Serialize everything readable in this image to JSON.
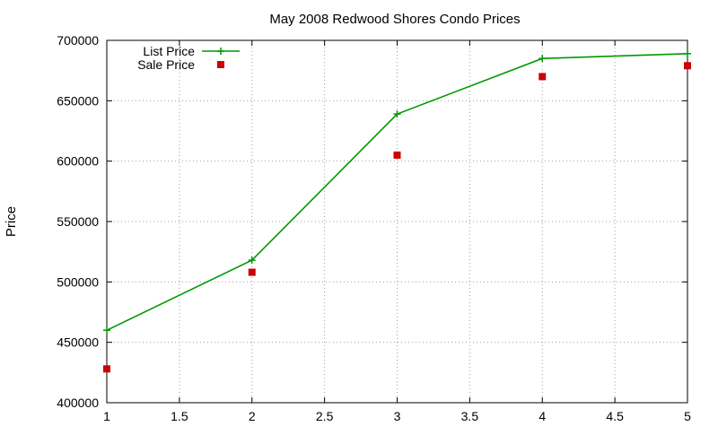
{
  "chart_data": {
    "type": "line",
    "title": "May 2008 Redwood Shores Condo Prices",
    "xlabel": "",
    "ylabel": "Price",
    "xlim": [
      1,
      5
    ],
    "ylim": [
      400000,
      700000
    ],
    "x_ticks": [
      "1",
      "1.5",
      "2",
      "2.5",
      "3",
      "3.5",
      "4",
      "4.5",
      "5"
    ],
    "y_ticks": [
      "400000",
      "450000",
      "500000",
      "550000",
      "600000",
      "650000",
      "700000"
    ],
    "x_tick_values": [
      1,
      1.5,
      2,
      2.5,
      3,
      3.5,
      4,
      4.5,
      5
    ],
    "y_tick_values": [
      400000,
      450000,
      500000,
      550000,
      600000,
      650000,
      700000
    ],
    "grid": true,
    "legend_position": "top-left",
    "series": [
      {
        "name": "List Price",
        "style": "linespoints",
        "marker": "plus",
        "color": "#009900",
        "x": [
          1,
          2,
          3,
          4,
          5
        ],
        "values": [
          460000,
          518000,
          639000,
          685000,
          689000
        ]
      },
      {
        "name": "Sale Price",
        "style": "points",
        "marker": "square",
        "color": "#cc0000",
        "x": [
          1,
          2,
          3,
          4,
          5
        ],
        "values": [
          428000,
          508000,
          605000,
          670000,
          679000
        ]
      }
    ]
  }
}
